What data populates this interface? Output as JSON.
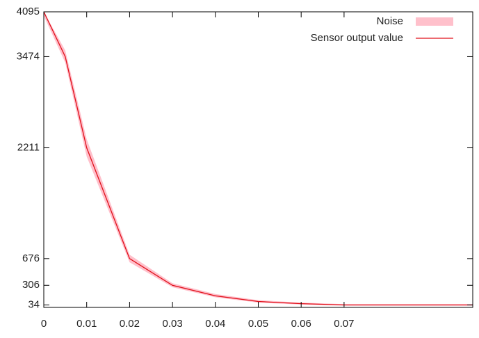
{
  "chart_data": {
    "type": "line",
    "x": [
      0,
      0.005,
      0.01,
      0.02,
      0.03,
      0.04,
      0.05,
      0.06,
      0.07,
      0.1
    ],
    "series": [
      {
        "name": "Noise",
        "color": "#ffc0cb",
        "lower": [
          4040,
          3390,
          2090,
          625,
          280,
          140,
          66,
          40,
          25,
          25
        ],
        "upper": [
          4095,
          3560,
          2330,
          730,
          335,
          185,
          100,
          66,
          46,
          46
        ]
      },
      {
        "name": "Sensor output value",
        "color": "#e0101a",
        "values": [
          4095,
          3474,
          2211,
          676,
          306,
          160,
          82,
          52,
          34,
          34
        ]
      }
    ],
    "xlim": [
      0,
      0.1
    ],
    "xticks": [
      0,
      0.01,
      0.02,
      0.03,
      0.04,
      0.05,
      0.06,
      0.07
    ],
    "ylim": [
      0,
      4095
    ],
    "yticks": [
      34,
      306,
      676,
      2211,
      3474,
      4095
    ],
    "legend": "top-right"
  }
}
